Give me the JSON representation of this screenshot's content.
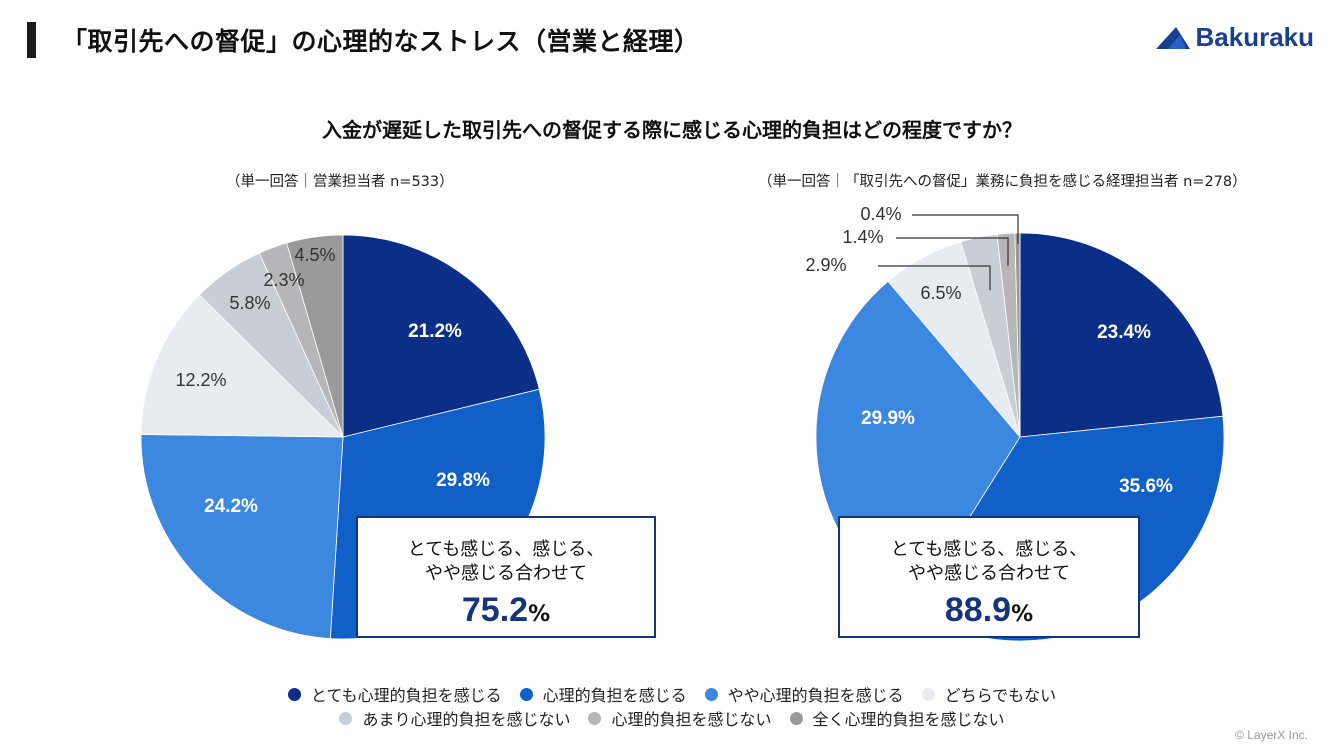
{
  "header": {
    "title": "「取引先への督促」の心理的なストレス（営業と経理）",
    "logo_text": "Bakuraku"
  },
  "question": "入金が遅延した取引先への督促する際に感じる心理的負担はどの程度ですか？",
  "colors": [
    "#0b2f86",
    "#1160c8",
    "#3c87e0",
    "#e8ebf0",
    "#c9ced6",
    "#b6b6b8",
    "#9a9a9a"
  ],
  "chart_data": [
    {
      "type": "pie",
      "note": "（単一回答｜営業担当者 n=533）",
      "slices": [
        {
          "name": "とても心理的負担を感じる",
          "value": 21.2,
          "label": "21.2%"
        },
        {
          "name": "心理的負担を感じる",
          "value": 29.8,
          "label": "29.8%"
        },
        {
          "name": "やや心理的負担を感じる",
          "value": 24.2,
          "label": "24.2%"
        },
        {
          "name": "どちらでもない",
          "value": 12.2,
          "label": "12.2%"
        },
        {
          "name": "あまり心理的負担を感じない",
          "value": 5.8,
          "label": "5.8%"
        },
        {
          "name": "心理的負担を感じない",
          "value": 2.3,
          "label": "2.3%"
        },
        {
          "name": "全く心理的負担を感じない",
          "value": 4.5,
          "label": "4.5%"
        }
      ],
      "callout": {
        "line1": "とても感じる、感じる、",
        "line2": "やや感じる合わせて",
        "total": "75.2",
        "unit": "%"
      }
    },
    {
      "type": "pie",
      "note": "（単一回答｜「取引先への督促」業務に負担を感じる経理担当者 n=278）",
      "slices": [
        {
          "name": "とても心理的負担を感じる",
          "value": 23.4,
          "label": "23.4%"
        },
        {
          "name": "心理的負担を感じる",
          "value": 35.6,
          "label": "35.6%"
        },
        {
          "name": "やや心理的負担を感じる",
          "value": 29.9,
          "label": "29.9%"
        },
        {
          "name": "どちらでもない",
          "value": 6.5,
          "label": "6.5%"
        },
        {
          "name": "あまり心理的負担を感じない",
          "value": 2.9,
          "label": "2.9%"
        },
        {
          "name": "心理的負担を感じない",
          "value": 1.4,
          "label": "1.4%"
        },
        {
          "name": "全く心理的負担を感じない",
          "value": 0.4,
          "label": "0.4%"
        }
      ],
      "callout": {
        "line1": "とても感じる、感じる、",
        "line2": "やや感じる合わせて",
        "total": "88.9",
        "unit": "%"
      }
    }
  ],
  "legend": [
    "とても心理的負担を感じる",
    "心理的負担を感じる",
    "やや心理的負担を感じる",
    "どちらでもない",
    "あまり心理的負担を感じない",
    "心理的負担を感じない",
    "全く心理的負担を感じない"
  ],
  "copyright": "© LayerX Inc."
}
